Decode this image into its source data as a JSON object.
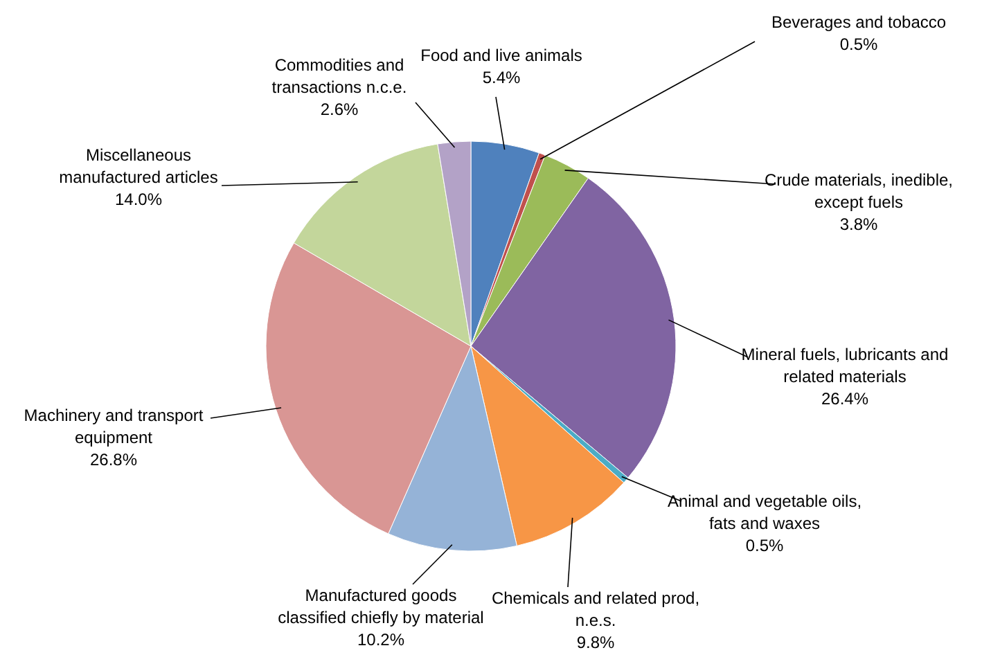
{
  "chart_data": {
    "type": "pie",
    "categories": [
      "Food and live animals",
      "Beverages and tobacco",
      "Crude materials, inedible, except fuels",
      "Mineral fuels, lubricants and related materials",
      "Animal and vegetable oils, fats and waxes",
      "Chemicals and related prod, n.e.s.",
      "Manufactured goods classified chiefly by material",
      "Machinery and transport equipment",
      "Miscellaneous manufactured articles",
      "Commodities and transactions n.c.e."
    ],
    "values": [
      5.4,
      0.5,
      3.8,
      26.4,
      0.5,
      9.8,
      10.2,
      26.8,
      14.0,
      2.6
    ],
    "value_labels": [
      "5.4%",
      "0.5%",
      "3.8%",
      "26.4%",
      "0.5%",
      "9.8%",
      "10.2%",
      "26.8%",
      "14.0%",
      "2.6%"
    ],
    "colors": [
      "#4f81bd",
      "#c0504d",
      "#9bbb59",
      "#8064a2",
      "#4bacc6",
      "#f79646",
      "#95b3d7",
      "#d99694",
      "#c3d69b",
      "#b3a2c7"
    ]
  }
}
